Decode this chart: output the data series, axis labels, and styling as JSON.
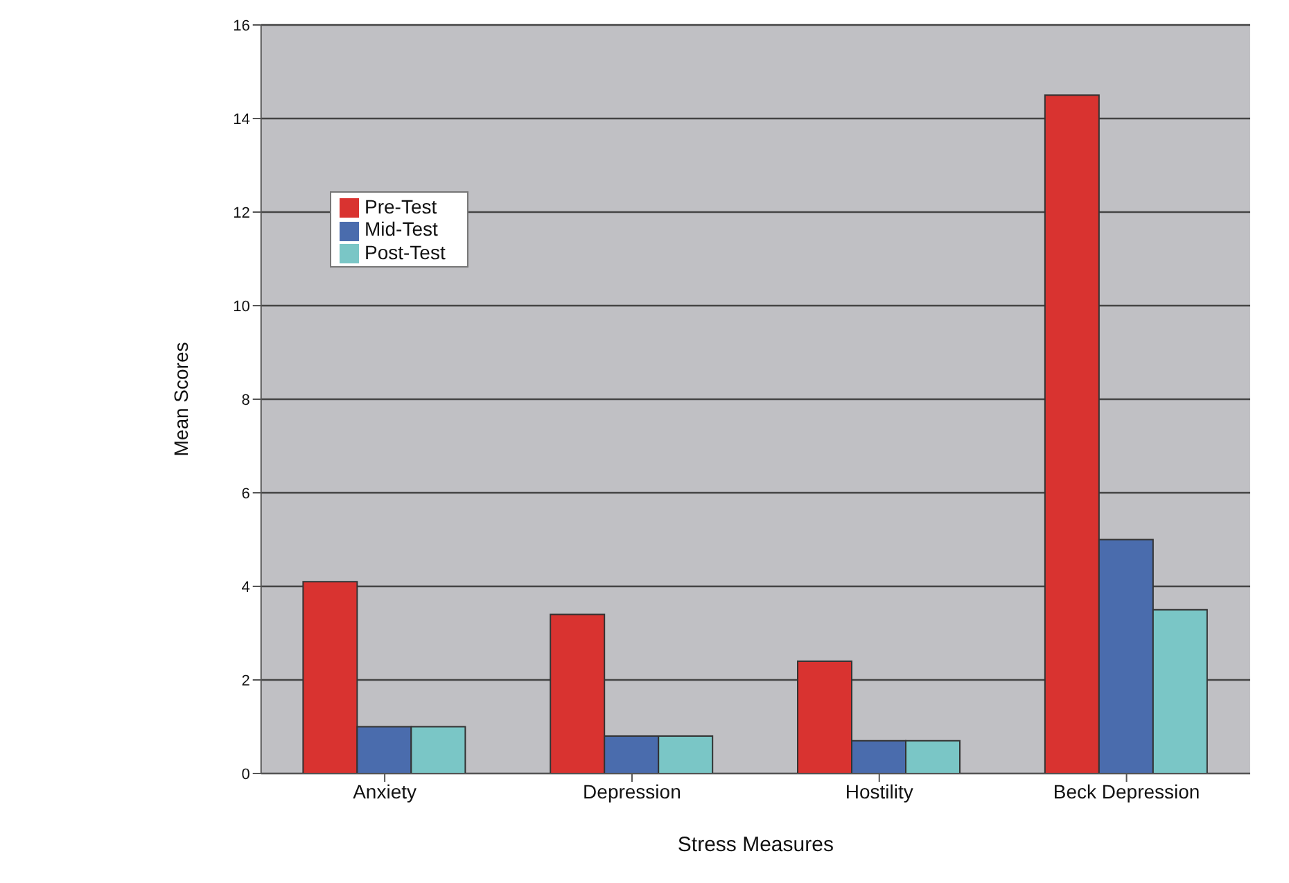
{
  "chart_data": {
    "type": "bar",
    "xlabel": "Stress Measures",
    "ylabel": "Mean Scores",
    "categories": [
      "Anxiety",
      "Depression",
      "Hostility",
      "Beck Depression"
    ],
    "series": [
      {
        "name": "Pre-Test",
        "color": "#d93330",
        "values": [
          4.1,
          3.4,
          2.4,
          14.5
        ]
      },
      {
        "name": "Mid-Test",
        "color": "#4a6cad",
        "values": [
          1.0,
          0.8,
          0.7,
          5.0
        ]
      },
      {
        "name": "Post-Test",
        "color": "#7ac6c6",
        "values": [
          1.0,
          0.8,
          0.7,
          3.5
        ]
      }
    ],
    "ylim": [
      0,
      16
    ],
    "yticks": [
      0,
      2,
      4,
      6,
      8,
      10,
      12,
      14,
      16
    ],
    "grid": "y",
    "legend": "top left"
  }
}
